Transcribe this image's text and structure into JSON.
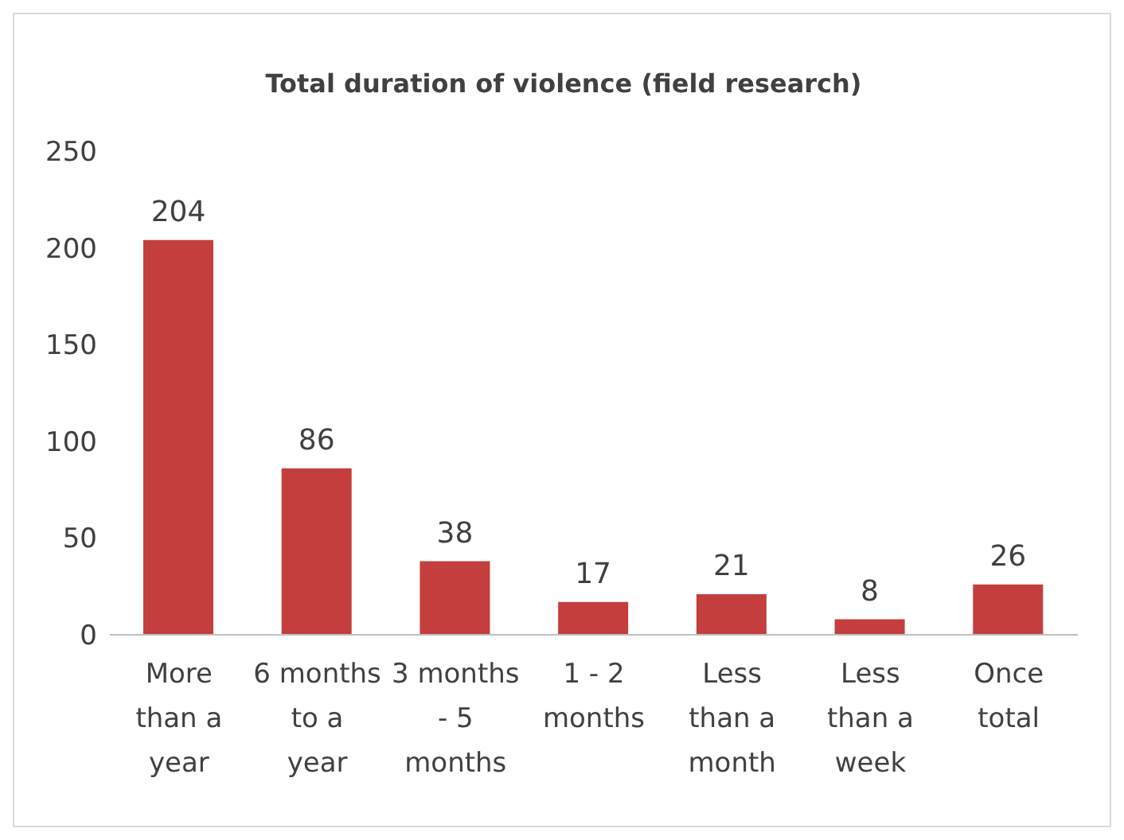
{
  "chart_data": {
    "type": "bar",
    "title": "Total duration of violence (field research)",
    "categories": [
      "More than a year",
      "6 months to a year",
      "3 months - 5 months",
      "1 - 2 months",
      "Less than a month",
      "Less than a week",
      "Once total"
    ],
    "values": [
      204,
      86,
      38,
      17,
      21,
      8,
      26
    ],
    "color": "#c43e3e",
    "ylim": [
      0,
      250
    ],
    "yticks": [
      0,
      50,
      100,
      150,
      200,
      250
    ],
    "grid": false,
    "data_labels": true,
    "legend": false
  }
}
